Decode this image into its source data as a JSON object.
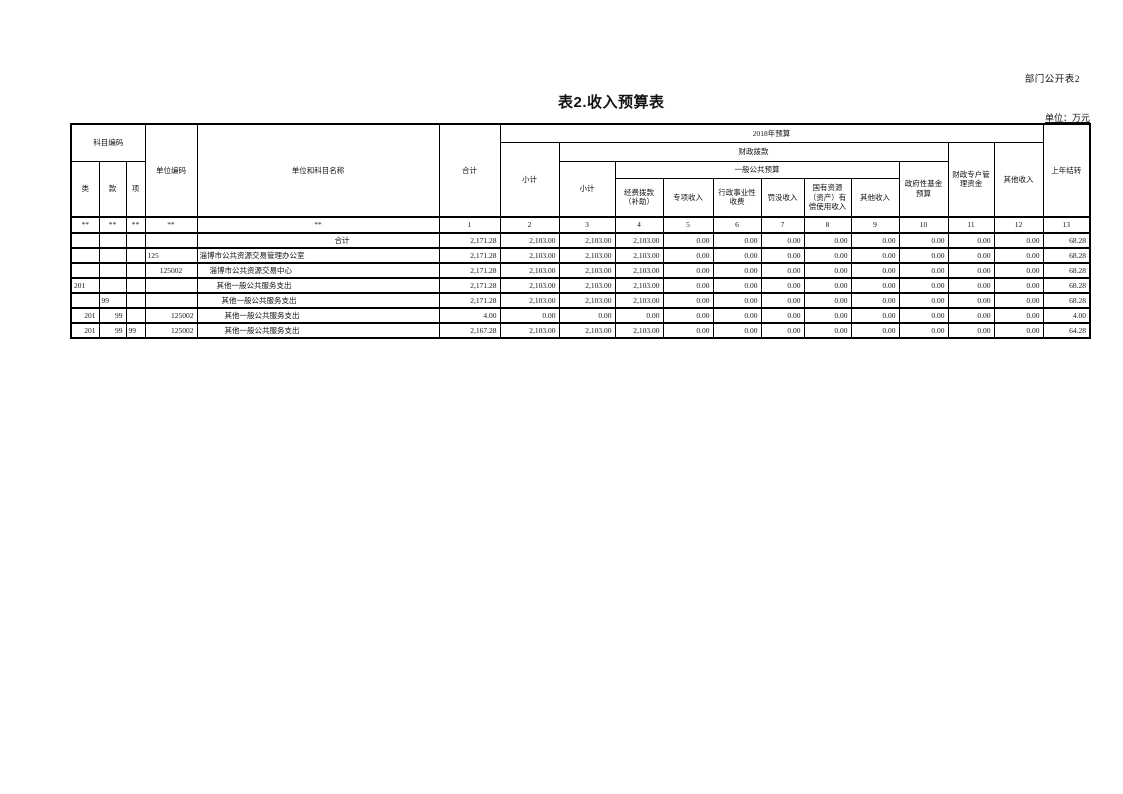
{
  "page": {
    "doc_label": "部门公开表2",
    "title": "表2.收入预算表",
    "unit_label": "单位：万元"
  },
  "table": {
    "header": {
      "subject_code": "科目编码",
      "class": "类",
      "section": "款",
      "item": "项",
      "unit_code": "单位编码",
      "unit_subject_name": "单位和科目名称",
      "total": "合计",
      "budget_2018": "2018年预算",
      "subtotal_fiscal": "小计",
      "fiscal_allocation": "财政拨款",
      "subtotal_general": "小计",
      "general_public_budget": "一般公共预算",
      "funding_allocation": "经费拨款\n（补助）",
      "special_income": "专项收入",
      "admin_fees": "行政事业性\n收费",
      "fines_income": "罚没收入",
      "state_resources_income": "国有资源\n（资产）有\n偿使用收入",
      "other_income_general": "其他收入",
      "gov_fund_budget": "政府性基金\n预算",
      "fiscal_special_account": "财政专户管\n理资金",
      "other_income": "其他收入",
      "prev_year_carryover": "上年结转"
    },
    "col_index_row": [
      "**",
      "**",
      "**",
      "**",
      "**",
      "1",
      "2",
      "3",
      "4",
      "5",
      "6",
      "7",
      "8",
      "9",
      "10",
      "11",
      "12",
      "13"
    ],
    "rows": [
      {
        "cells": [
          "",
          "",
          "",
          "",
          "合计",
          "2,171.28",
          "2,103.00",
          "2,103.00",
          "2,103.00",
          "0.00",
          "0.00",
          "0.00",
          "0.00",
          "0.00",
          "0.00",
          "0.00",
          "0.00",
          "68.28"
        ]
      },
      {
        "cells": [
          "",
          "",
          "",
          "125",
          "淄博市公共资源交易管理办公室",
          "2,171.28",
          "2,103.00",
          "2,103.00",
          "2,103.00",
          "0.00",
          "0.00",
          "0.00",
          "0.00",
          "0.00",
          "0.00",
          "0.00",
          "0.00",
          "68.28"
        ]
      },
      {
        "cells": [
          "",
          "",
          "",
          "125002",
          "淄博市公共资源交易中心",
          "2,171.28",
          "2,103.00",
          "2,103.00",
          "2,103.00",
          "0.00",
          "0.00",
          "0.00",
          "0.00",
          "0.00",
          "0.00",
          "0.00",
          "0.00",
          "68.28"
        ]
      },
      {
        "cells": [
          "201",
          "",
          "",
          "",
          "其他一般公共服务支出",
          "2,171.28",
          "2,103.00",
          "2,103.00",
          "2,103.00",
          "0.00",
          "0.00",
          "0.00",
          "0.00",
          "0.00",
          "0.00",
          "0.00",
          "0.00",
          "68.28"
        ]
      },
      {
        "cells": [
          "",
          "99",
          "",
          "",
          "其他一般公共服务支出",
          "2,171.28",
          "2,103.00",
          "2,103.00",
          "2,103.00",
          "0.00",
          "0.00",
          "0.00",
          "0.00",
          "0.00",
          "0.00",
          "0.00",
          "0.00",
          "68.28"
        ]
      },
      {
        "cells": [
          "201",
          "99",
          "",
          "125002",
          "其他一般公共服务支出",
          "4.00",
          "0.00",
          "0.00",
          "0.00",
          "0.00",
          "0.00",
          "0.00",
          "0.00",
          "0.00",
          "0.00",
          "0.00",
          "0.00",
          "4.00"
        ]
      },
      {
        "cells": [
          "201",
          "99",
          "99",
          "125002",
          "其他一般公共服务支出",
          "2,167.28",
          "2,103.00",
          "2,103.00",
          "2,103.00",
          "0.00",
          "0.00",
          "0.00",
          "0.00",
          "0.00",
          "0.00",
          "0.00",
          "0.00",
          "64.28"
        ]
      }
    ]
  }
}
